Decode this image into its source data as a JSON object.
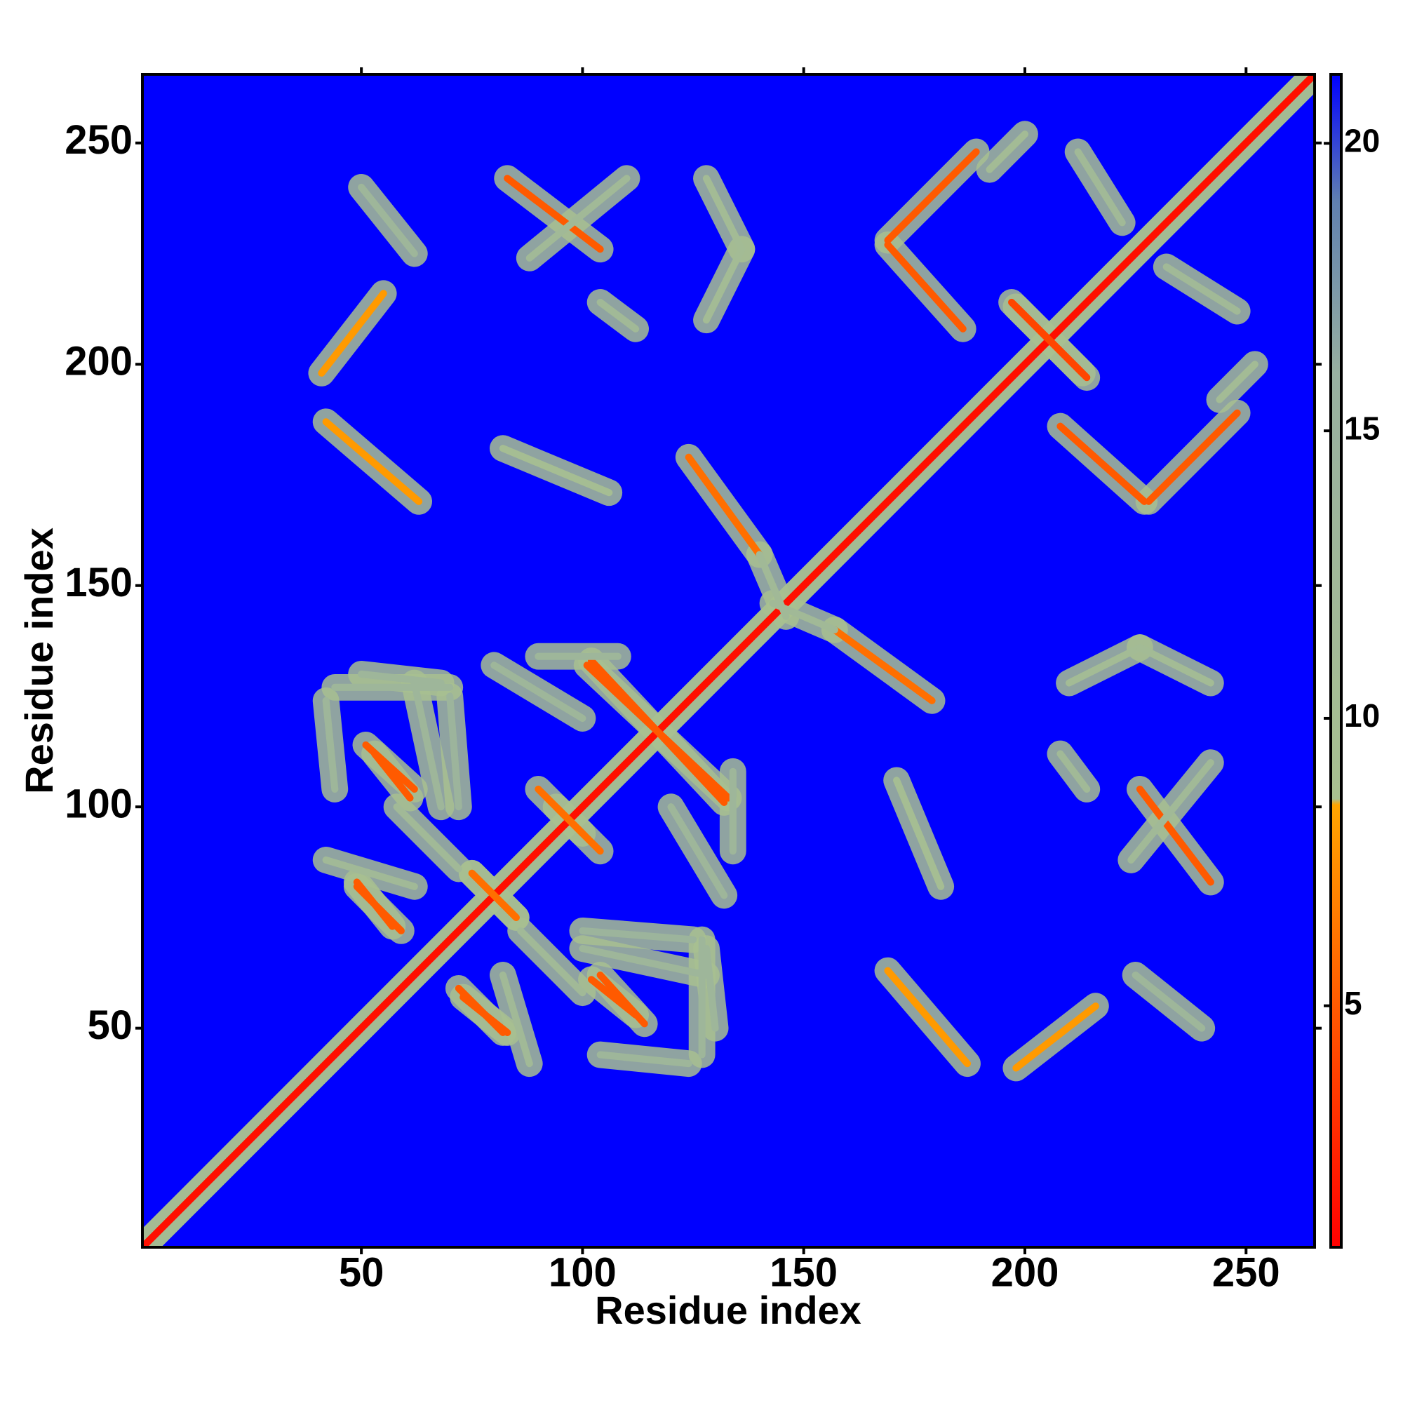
{
  "chart_data": {
    "type": "contact_map",
    "x_label": "Residue index",
    "y_label": "Residue index",
    "xlim": [
      0.5,
      265.5
    ],
    "ylim": [
      0.5,
      265.5
    ],
    "xticks": [
      50,
      100,
      150,
      200,
      250
    ],
    "yticks": [
      50,
      100,
      150,
      200,
      250
    ],
    "background": "#0000ff",
    "symmetric": true,
    "zlim": [
      0.8,
      21.2
    ],
    "zticks": [
      5,
      10,
      15,
      20
    ],
    "colorscale": [
      {
        "value": 0.8,
        "color": "#ff0000"
      },
      {
        "value": 8.5,
        "color": "#ffa500"
      },
      {
        "value": 8.6,
        "color": "#a8c090"
      },
      {
        "value": 16,
        "color": "#98b0a0"
      },
      {
        "value": 19,
        "color": "#6080b0"
      },
      {
        "value": 21.2,
        "color": "#0000ff"
      }
    ],
    "contacts": [
      {
        "x": [
          1,
          265
        ],
        "y": [
          1,
          265
        ],
        "value": 1.5
      },
      {
        "x": [
          157,
          179
        ],
        "y": [
          140,
          124
        ],
        "value": 6
      },
      {
        "x": [
          143,
          157
        ],
        "y": [
          146,
          140
        ],
        "value": 12
      },
      {
        "x": [
          169,
          187
        ],
        "y": [
          63,
          42
        ],
        "value": 8
      },
      {
        "x": [
          198,
          216
        ],
        "y": [
          41,
          55
        ],
        "value": 8
      },
      {
        "x": [
          225,
          240
        ],
        "y": [
          62,
          50
        ],
        "value": 13
      },
      {
        "x": [
          171,
          181
        ],
        "y": [
          106,
          82
        ],
        "value": 10
      },
      {
        "x": [
          226,
          242
        ],
        "y": [
          104,
          83
        ],
        "value": 5
      },
      {
        "x": [
          224,
          242
        ],
        "y": [
          88,
          110
        ],
        "value": 12
      },
      {
        "x": [
          210,
          226
        ],
        "y": [
          128,
          136
        ],
        "value": 11
      },
      {
        "x": [
          226,
          242
        ],
        "y": [
          136,
          128
        ],
        "value": 11
      },
      {
        "x": [
          198,
          214
        ],
        "y": [
          213,
          197
        ],
        "value": 4
      },
      {
        "x": [
          208,
          227
        ],
        "y": [
          186,
          169
        ],
        "value": 5
      },
      {
        "x": [
          228,
          248
        ],
        "y": [
          169,
          189
        ],
        "value": 5
      },
      {
        "x": [
          244,
          252
        ],
        "y": [
          192,
          200
        ],
        "value": 11
      },
      {
        "x": [
          232,
          248
        ],
        "y": [
          222,
          212
        ],
        "value": 12
      },
      {
        "x": [
          208,
          214
        ],
        "y": [
          112,
          104
        ],
        "value": 12
      },
      {
        "x": [
          51,
          62
        ],
        "y": [
          114,
          104
        ],
        "value": 5
      },
      {
        "x": [
          49,
          57
        ],
        "y": [
          83,
          73
        ],
        "value": 5
      },
      {
        "x": [
          72,
          82
        ],
        "y": [
          59,
          49
        ],
        "value": 5
      },
      {
        "x": [
          102,
          112
        ],
        "y": [
          61,
          53
        ],
        "value": 5
      },
      {
        "x": [
          101,
          133
        ],
        "y": [
          132,
          102
        ],
        "value": 5
      },
      {
        "x": [
          90,
          100
        ],
        "y": [
          104,
          94
        ],
        "value": 6
      },
      {
        "x": [
          75,
          85
        ],
        "y": [
          85,
          75
        ],
        "value": 6
      },
      {
        "x": [
          44,
          70
        ],
        "y": [
          127,
          127
        ],
        "value": 13
      },
      {
        "x": [
          42,
          44
        ],
        "y": [
          124,
          104
        ],
        "value": 13
      },
      {
        "x": [
          70,
          72
        ],
        "y": [
          125,
          100
        ],
        "value": 14
      },
      {
        "x": [
          90,
          108
        ],
        "y": [
          134,
          134
        ],
        "value": 13
      },
      {
        "x": [
          120,
          132
        ],
        "y": [
          100,
          80
        ],
        "value": 13
      },
      {
        "x": [
          100,
          128
        ],
        "y": [
          68,
          62
        ],
        "value": 13
      },
      {
        "x": [
          128,
          130
        ],
        "y": [
          68,
          50
        ],
        "value": 13
      },
      {
        "x": [
          86,
          100
        ],
        "y": [
          72,
          58
        ],
        "value": 12
      },
      {
        "x": [
          42,
          62
        ],
        "y": [
          88,
          82
        ],
        "value": 12
      }
    ]
  }
}
